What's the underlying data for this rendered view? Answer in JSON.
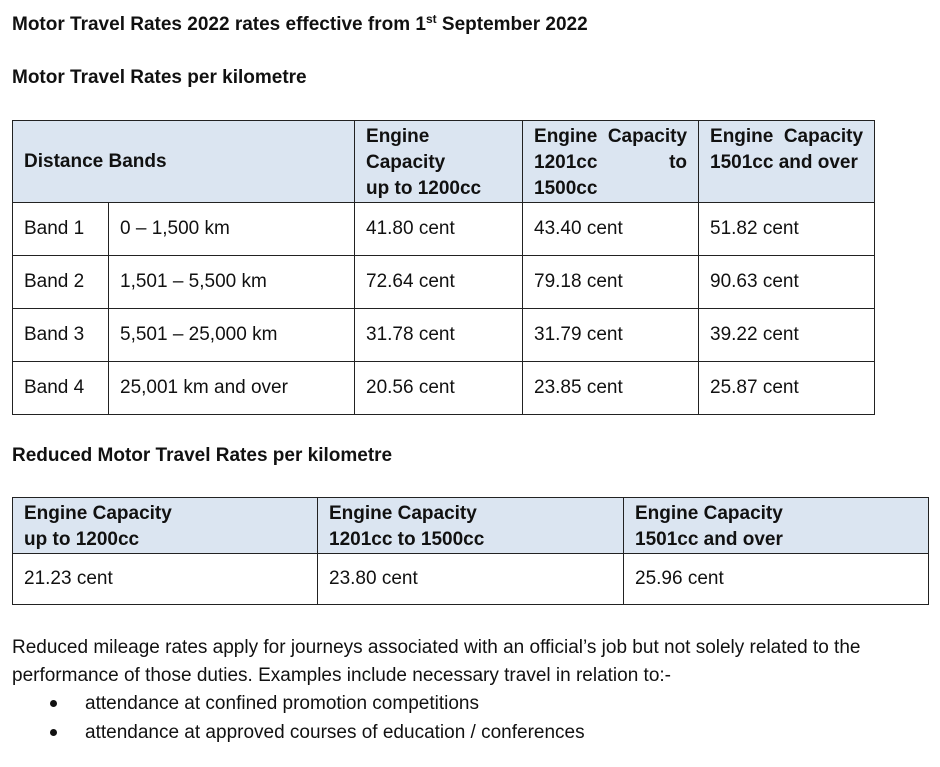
{
  "document": {
    "title_main": "Motor Travel Rates 2022 rates effective from 1",
    "title_sup": "st",
    "title_end": " September 2022"
  },
  "rates_section": {
    "heading": "Motor Travel Rates per kilometre",
    "headers": {
      "distance_bands": "Distance Bands",
      "col1_line1": "Engine Capacity",
      "col1_line2": "up to 1200cc",
      "col2_line1_a": "Engine",
      "col2_line1_b": "Capacity",
      "col2_line2_a": "1201cc",
      "col2_line2_b": "to",
      "col2_line3": "1500cc",
      "col3_line1_a": "Engine",
      "col3_line1_b": "Capacity",
      "col3_line2": "1501cc and over"
    },
    "rows": [
      {
        "band": "Band 1",
        "range": "0 – 1,500 km",
        "rate_1200": "41.80 cent",
        "rate_1500": "43.40 cent",
        "rate_over": "51.82 cent"
      },
      {
        "band": "Band 2",
        "range": "1,501 – 5,500 km",
        "rate_1200": "72.64 cent",
        "rate_1500": "79.18 cent",
        "rate_over": "90.63 cent"
      },
      {
        "band": "Band 3",
        "range": "5,501 – 25,000 km",
        "rate_1200": "31.78 cent",
        "rate_1500": "31.79 cent",
        "rate_over": "39.22 cent"
      },
      {
        "band": "Band 4",
        "range": "25,001 km and over",
        "rate_1200": "20.56 cent",
        "rate_1500": "23.85 cent",
        "rate_over": "25.87 cent"
      }
    ]
  },
  "reduced_section": {
    "heading": "Reduced Motor Travel Rates per kilometre",
    "headers": {
      "col1_line1": "Engine Capacity",
      "col1_line2": "up to 1200cc",
      "col2_line1": "Engine Capacity",
      "col2_line2": "1201cc to 1500cc",
      "col3_line1": "Engine Capacity",
      "col3_line2": "1501cc and over"
    },
    "values": {
      "rate_1200": "21.23 cent",
      "rate_1500": "23.80 cent",
      "rate_over": "25.96 cent"
    }
  },
  "notes": {
    "paragraph": "Reduced mileage rates apply for journeys associated with an official’s job but not solely related to the performance of those duties. Examples include necessary travel in relation to:-",
    "bullets": [
      "attendance at confined promotion competitions",
      "attendance at approved courses of education / conferences"
    ]
  },
  "colors": {
    "header_fill": "#dbe5f1",
    "border": "#222222"
  }
}
